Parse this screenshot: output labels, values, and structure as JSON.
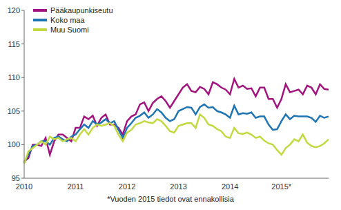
{
  "chart_data": {
    "type": "line",
    "annotations": [
      "*Vuoden 2015 tiedot ovat ennakollisia"
    ],
    "x": [
      "2010",
      null,
      null,
      null,
      null,
      null,
      null,
      null,
      null,
      null,
      null,
      null,
      "2011",
      null,
      null,
      null,
      null,
      null,
      null,
      null,
      null,
      null,
      null,
      null,
      "2012",
      null,
      null,
      null,
      null,
      null,
      null,
      null,
      null,
      null,
      null,
      null,
      "2013",
      null,
      null,
      null,
      null,
      null,
      null,
      null,
      null,
      null,
      null,
      null,
      "2014",
      null,
      null,
      null,
      null,
      null,
      null,
      null,
      null,
      null,
      null,
      null,
      "2015*",
      null,
      null,
      null,
      null,
      null,
      null,
      null,
      null,
      null,
      null,
      null
    ],
    "series": [
      {
        "name": "Pääkaupunkiseutu",
        "color": "#a3137d",
        "values": [
          97.5,
          98,
          100,
          100,
          99.8,
          101,
          98.5,
          100.5,
          101.5,
          101.5,
          101,
          100.5,
          102.5,
          102.5,
          104.2,
          103.8,
          104.3,
          102.8,
          104,
          104.5,
          103,
          103,
          102.5,
          101.5,
          103.5,
          104.2,
          104.5,
          106,
          106.3,
          105,
          106.2,
          106.8,
          107.2,
          106.5,
          105.5,
          106.5,
          107.5,
          108.5,
          109,
          108,
          107.8,
          108.6,
          108.3,
          107.5,
          109.3,
          109,
          108.5,
          108.2,
          107.5,
          109.8,
          108.5,
          108.8,
          108.3,
          108.4,
          107.2,
          108.5,
          108.5,
          106.8,
          106.8,
          105.5,
          106.8,
          109,
          107.8,
          108,
          108.2,
          107.5,
          108.8,
          108.5,
          107.5,
          109,
          108.3,
          108.2
        ]
      },
      {
        "name": "Koko maa",
        "color": "#1f74b4",
        "values": [
          97.3,
          98.5,
          99.8,
          100,
          100.5,
          100.5,
          100,
          101,
          101.2,
          100.8,
          100.5,
          101.2,
          101.5,
          102.3,
          103,
          102.5,
          103.5,
          103,
          103.3,
          103.8,
          103.2,
          103.5,
          102.2,
          101,
          102.5,
          103.2,
          104,
          104.3,
          104.8,
          104,
          104.5,
          105.3,
          104.8,
          104,
          103.5,
          103.8,
          105,
          105.3,
          105.6,
          105.5,
          104.5,
          105.6,
          106,
          105.5,
          105.6,
          105,
          104.8,
          104.5,
          104,
          105.8,
          104.5,
          104.7,
          104.6,
          104.8,
          104,
          104.2,
          104.2,
          103,
          102.2,
          102.3,
          103.5,
          104.5,
          103.8,
          104.3,
          104.2,
          104.2,
          104.2,
          104,
          103.4,
          104.3,
          104,
          104.2
        ]
      },
      {
        "name": "Muu Suomi",
        "color": "#c3d941",
        "values": [
          97.2,
          99,
          99.5,
          100,
          100.5,
          100,
          101.2,
          100.8,
          101,
          100.5,
          100.8,
          101,
          100.5,
          101.5,
          102.3,
          101.5,
          102.5,
          103,
          102.8,
          103,
          103.2,
          102.8,
          101.5,
          100.5,
          101.8,
          102.2,
          103,
          103.2,
          103.5,
          103.3,
          103.2,
          103.8,
          103.5,
          102.8,
          102,
          101.8,
          102.8,
          103,
          103.2,
          103.2,
          102.5,
          104.5,
          104,
          103,
          102.8,
          102.3,
          102,
          101.2,
          101,
          102.5,
          101.7,
          101.6,
          101.8,
          101.5,
          101,
          101.2,
          100.6,
          100.2,
          100,
          99.2,
          98.5,
          99.5,
          100,
          100.8,
          100.5,
          101.5,
          100.3,
          99.8,
          99.6,
          99.8,
          100.2,
          100.8
        ]
      }
    ],
    "ylim": [
      95,
      120
    ],
    "yticks": [
      95,
      100,
      105,
      110,
      115,
      120
    ],
    "grid": false,
    "legend": "top-left"
  }
}
